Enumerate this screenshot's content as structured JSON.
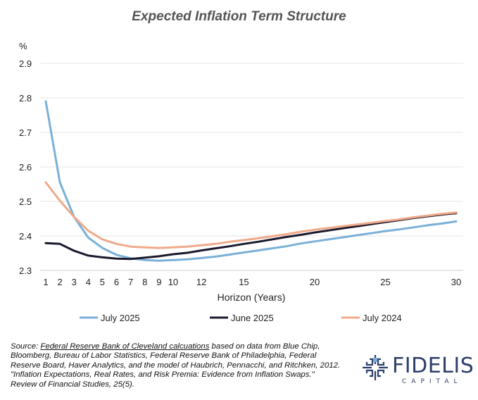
{
  "chart_data": {
    "type": "line",
    "title": "Expected Inflation Term Structure",
    "ylabel": "%",
    "xlabel": "Horizon (Years)",
    "ylim": [
      2.3,
      2.9
    ],
    "xlim": [
      1,
      30
    ],
    "yticks": [
      "2.3",
      "2.4",
      "2.5",
      "2.6",
      "2.7",
      "2.8",
      "2.9"
    ],
    "xticks": [
      "1",
      "2",
      "3",
      "4",
      "5",
      "6",
      "7",
      "8",
      "9",
      "10",
      "12",
      "15",
      "20",
      "25",
      "30"
    ],
    "grid": "horizontal",
    "legend_position": "bottom",
    "x": [
      1,
      2,
      3,
      4,
      5,
      6,
      7,
      8,
      9,
      10,
      11,
      12,
      13,
      14,
      15,
      16,
      17,
      18,
      19,
      20,
      21,
      22,
      23,
      24,
      25,
      26,
      27,
      28,
      29,
      30
    ],
    "series": [
      {
        "name": "July 2025",
        "color": "#7ab0d9",
        "values": [
          2.79,
          2.555,
          2.455,
          2.395,
          2.365,
          2.345,
          2.335,
          2.33,
          2.328,
          2.33,
          2.332,
          2.336,
          2.34,
          2.346,
          2.352,
          2.358,
          2.364,
          2.37,
          2.378,
          2.384,
          2.39,
          2.396,
          2.402,
          2.408,
          2.414,
          2.419,
          2.425,
          2.431,
          2.436,
          2.442
        ]
      },
      {
        "name": "June 2025",
        "color": "#1a1a2e",
        "values": [
          2.379,
          2.377,
          2.357,
          2.343,
          2.338,
          2.334,
          2.333,
          2.337,
          2.341,
          2.347,
          2.351,
          2.358,
          2.364,
          2.37,
          2.377,
          2.383,
          2.39,
          2.397,
          2.403,
          2.41,
          2.416,
          2.422,
          2.428,
          2.434,
          2.44,
          2.446,
          2.452,
          2.457,
          2.462,
          2.466
        ]
      },
      {
        "name": "July 2024",
        "color": "#f0a98a",
        "values": [
          2.555,
          2.502,
          2.455,
          2.415,
          2.39,
          2.377,
          2.369,
          2.367,
          2.365,
          2.367,
          2.369,
          2.373,
          2.377,
          2.383,
          2.388,
          2.393,
          2.399,
          2.405,
          2.412,
          2.418,
          2.423,
          2.428,
          2.433,
          2.438,
          2.443,
          2.448,
          2.454,
          2.459,
          2.464,
          2.468
        ]
      }
    ]
  },
  "footer": {
    "source_prefix": "Source: ",
    "source_link": "Federal Reserve Bank of Cleveland calcuations",
    "source_text": " based on data from Blue Chip, Bloomberg, Bureau of Labor Statistics, Federal Reserve Bank of Philadelphia, Federal Reserve Board, Haver Analytics, and the model of Haubrich, Pennacchi, and Ritchken, 2012. \"Inflation Expectations, Real Rates, and Risk Premia: Evidence from Inflation Swaps.\" Review of Financial Studies, 25(5)."
  },
  "logo": {
    "word": "FIDELIS",
    "sub": "CAPITAL",
    "color": "#2d3f6b"
  }
}
